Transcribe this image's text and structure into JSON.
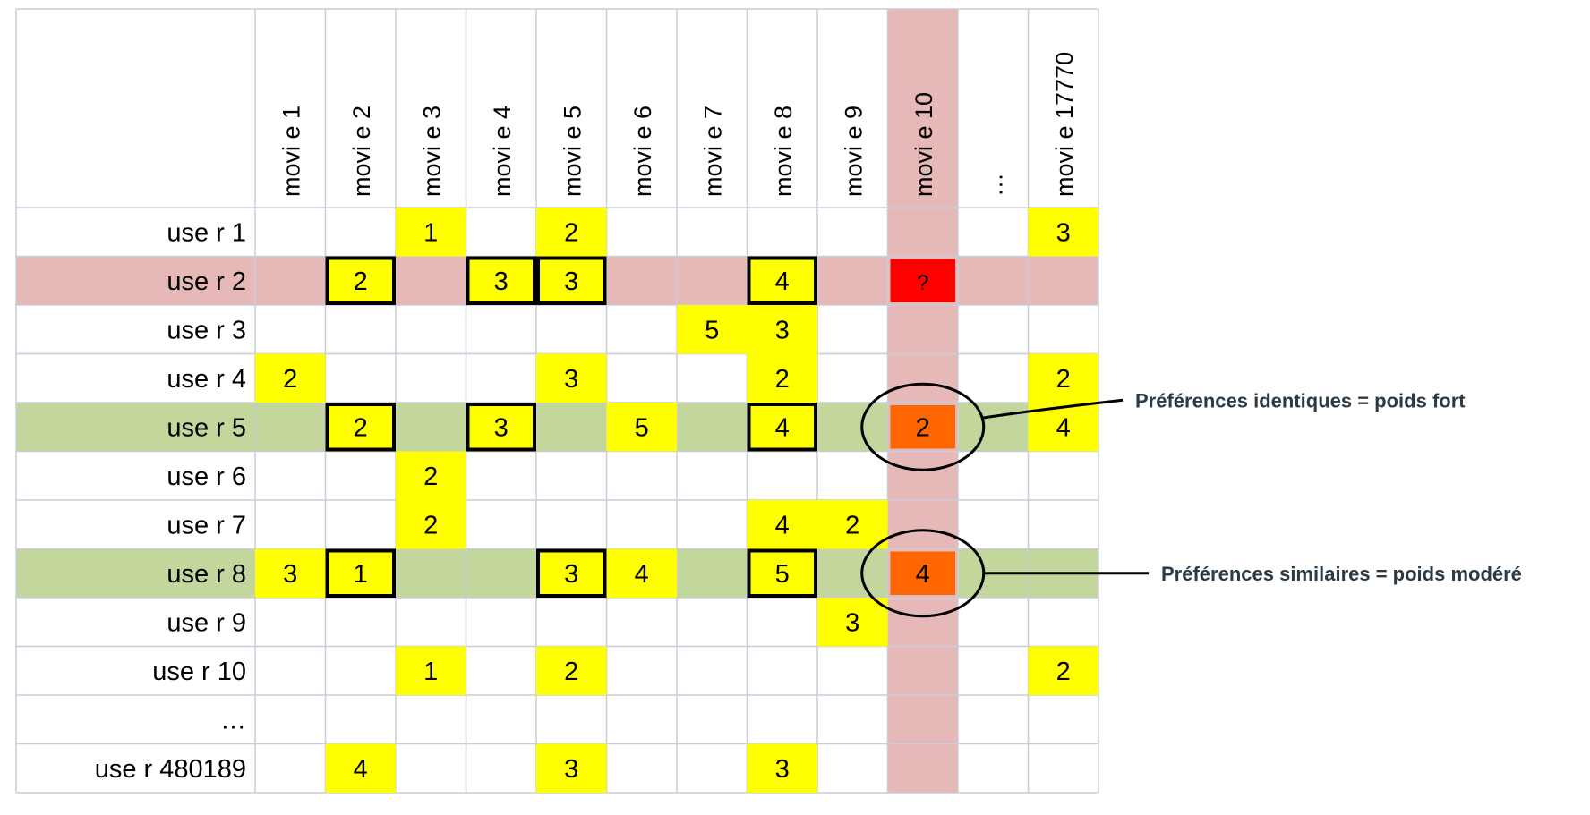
{
  "columns": [
    "movi e 1",
    "movi e 2",
    "movi e 3",
    "movi e 4",
    "movi e 5",
    "movi e 6",
    "movi e 7",
    "movi e 8",
    "movi e 9",
    "movi e 10",
    "…",
    "movi e 17770"
  ],
  "rows": [
    "use r 1",
    "use r 2",
    "use r 3",
    "use r 4",
    "use r 5",
    "use r 6",
    "use r 7",
    "use r 8",
    "use r 9",
    "use r 10",
    "…",
    "use r 480189"
  ],
  "ratings": [
    {
      "row": 0,
      "col": 2,
      "value": "1"
    },
    {
      "row": 0,
      "col": 4,
      "value": "2"
    },
    {
      "row": 0,
      "col": 11,
      "value": "3"
    },
    {
      "row": 1,
      "col": 1,
      "value": "2"
    },
    {
      "row": 1,
      "col": 3,
      "value": "3"
    },
    {
      "row": 1,
      "col": 4,
      "value": "3"
    },
    {
      "row": 1,
      "col": 7,
      "value": "4"
    },
    {
      "row": 1,
      "col": 9,
      "value": "?"
    },
    {
      "row": 2,
      "col": 6,
      "value": "5"
    },
    {
      "row": 2,
      "col": 7,
      "value": "3"
    },
    {
      "row": 3,
      "col": 0,
      "value": "2"
    },
    {
      "row": 3,
      "col": 4,
      "value": "3"
    },
    {
      "row": 3,
      "col": 7,
      "value": "2"
    },
    {
      "row": 3,
      "col": 11,
      "value": "2"
    },
    {
      "row": 4,
      "col": 1,
      "value": "2"
    },
    {
      "row": 4,
      "col": 3,
      "value": "3"
    },
    {
      "row": 4,
      "col": 5,
      "value": "5"
    },
    {
      "row": 4,
      "col": 7,
      "value": "4"
    },
    {
      "row": 4,
      "col": 9,
      "value": "2"
    },
    {
      "row": 4,
      "col": 11,
      "value": "4"
    },
    {
      "row": 5,
      "col": 2,
      "value": "2"
    },
    {
      "row": 6,
      "col": 2,
      "value": "2"
    },
    {
      "row": 6,
      "col": 7,
      "value": "4"
    },
    {
      "row": 6,
      "col": 8,
      "value": "2"
    },
    {
      "row": 7,
      "col": 0,
      "value": "3"
    },
    {
      "row": 7,
      "col": 1,
      "value": "1"
    },
    {
      "row": 7,
      "col": 4,
      "value": "3"
    },
    {
      "row": 7,
      "col": 5,
      "value": "4"
    },
    {
      "row": 7,
      "col": 7,
      "value": "5"
    },
    {
      "row": 7,
      "col": 9,
      "value": "4"
    },
    {
      "row": 8,
      "col": 8,
      "value": "3"
    },
    {
      "row": 9,
      "col": 2,
      "value": "1"
    },
    {
      "row": 9,
      "col": 4,
      "value": "2"
    },
    {
      "row": 9,
      "col": 11,
      "value": "2"
    },
    {
      "row": 11,
      "col": 1,
      "value": "4"
    },
    {
      "row": 11,
      "col": 4,
      "value": "3"
    },
    {
      "row": 11,
      "col": 7,
      "value": "3"
    }
  ],
  "target_cell": {
    "row": 1,
    "col": 9
  },
  "highlight": {
    "target_row": 1,
    "target_col": 9,
    "similar_rows": [
      4,
      7
    ],
    "boxed_cols": [
      1,
      3,
      4,
      7
    ]
  },
  "colors": {
    "rating": "#ffff00",
    "unknown": "#ff0000",
    "predicted": "#ff6600",
    "target_band": "#e6b8b8",
    "similar_band": "#c3d69b",
    "grid": "#c8cdd8",
    "annotation_text": "#2b3a45"
  },
  "annotations": [
    {
      "row": 4,
      "text": "Préférences identiques = poids fort"
    },
    {
      "row": 7,
      "text": "Préférences similaires = poids modéré"
    }
  ]
}
